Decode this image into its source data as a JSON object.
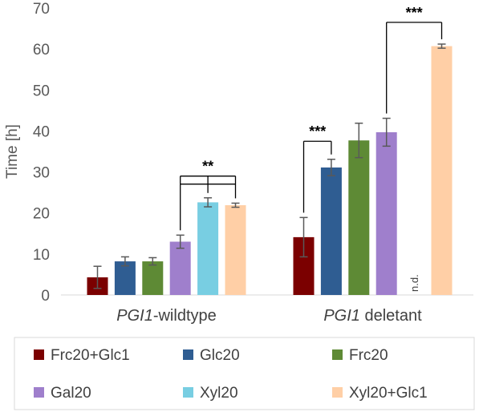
{
  "chart_data": {
    "type": "bar",
    "title": "",
    "ylabel": "Time [h]",
    "xlabel": "",
    "ylim": [
      0,
      70
    ],
    "yticks": [
      0,
      10,
      20,
      30,
      40,
      50,
      60,
      70
    ],
    "grid": false,
    "legend_position": "bottom",
    "groups": [
      {
        "italic": "PGI1",
        "rest": "-wildtype"
      },
      {
        "italic": "PGI1",
        "rest": " deletant"
      }
    ],
    "series": [
      {
        "name": "Frc20+Glc1",
        "color": "#7B0000",
        "values": [
          4.3,
          14.1
        ],
        "errors": [
          2.7,
          4.8
        ]
      },
      {
        "name": "Glc20",
        "color": "#2F5D92",
        "values": [
          8.2,
          31.1
        ],
        "errors": [
          1.1,
          2.0
        ]
      },
      {
        "name": "Frc20",
        "color": "#5E8A35",
        "values": [
          8.2,
          37.7
        ],
        "errors": [
          0.9,
          4.2
        ]
      },
      {
        "name": "Gal20",
        "color": "#9F7FCC",
        "values": [
          13.0,
          39.7
        ],
        "errors": [
          1.6,
          3.4
        ]
      },
      {
        "name": "Xyl20",
        "color": "#78CEE2",
        "values": [
          22.6,
          null
        ],
        "errors": [
          1.1,
          null
        ]
      },
      {
        "name": "Xyl20+Glc1",
        "color": "#FFCFA6",
        "values": [
          21.9,
          60.7
        ],
        "errors": [
          0.5,
          0.5
        ]
      }
    ],
    "not_determined_label": "n.d.",
    "significance": [
      {
        "label": "**",
        "group": 0,
        "from": 3,
        "to": [
          4,
          5
        ],
        "y": 29
      },
      {
        "label": "***",
        "group": 1,
        "from": 0,
        "to": [
          1
        ],
        "y": 37.5
      },
      {
        "label": "***",
        "group": 1,
        "from": 3,
        "to": [
          5
        ],
        "y": 66.5
      }
    ]
  }
}
